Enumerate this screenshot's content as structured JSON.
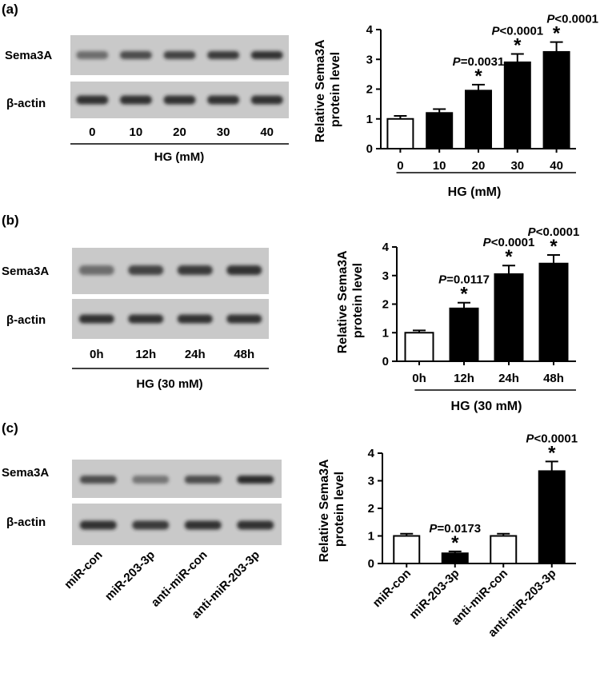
{
  "panels": [
    {
      "id": "a",
      "panel_label": "(a)",
      "blot": {
        "row_labels": [
          "Sema3A",
          "β-actin"
        ],
        "lane_labels": [
          "0",
          "10",
          "20",
          "30",
          "40"
        ],
        "group_label": "HG (mM)",
        "band_intensity": {
          "Sema3A": [
            0.55,
            0.75,
            0.8,
            0.85,
            0.9
          ],
          "β-actin": [
            0.9,
            0.9,
            0.9,
            0.9,
            0.9
          ]
        }
      }
    },
    {
      "id": "b",
      "panel_label": "(b)",
      "blot": {
        "row_labels": [
          "Sema3A",
          "β-actin"
        ],
        "lane_labels": [
          "0h",
          "12h",
          "24h",
          "48h"
        ],
        "group_label": "HG (30 mM)",
        "band_intensity": {
          "Sema3A": [
            0.55,
            0.8,
            0.85,
            0.9
          ],
          "β-actin": [
            0.9,
            0.9,
            0.9,
            0.9
          ]
        }
      }
    },
    {
      "id": "c",
      "panel_label": "(c)",
      "blot": {
        "row_labels": [
          "Sema3A",
          "β-actin"
        ],
        "lane_labels": [
          "miR-con",
          "miR-203-3p",
          "anti-miR-con",
          "anti-miR-203-3p"
        ],
        "group_label": "",
        "band_intensity": {
          "Sema3A": [
            0.75,
            0.5,
            0.75,
            0.95
          ],
          "β-actin": [
            0.9,
            0.85,
            0.9,
            0.9
          ]
        }
      }
    }
  ],
  "chart_data": [
    {
      "type": "bar",
      "title": "",
      "ylabel": "Relative Sema3A protein level",
      "xlabel": "HG (mM)",
      "categories": [
        "0",
        "10",
        "20",
        "30",
        "40"
      ],
      "values": [
        1.0,
        1.2,
        1.95,
        2.9,
        3.25
      ],
      "errors": [
        0.1,
        0.13,
        0.2,
        0.28,
        0.33
      ],
      "fill": [
        "white",
        "black",
        "black",
        "black",
        "black"
      ],
      "ylim": [
        0,
        4
      ],
      "yticks": [
        0,
        1,
        2,
        3,
        4
      ],
      "annotations": [
        {
          "category": "20",
          "p_text": "=0.0031",
          "star": "*"
        },
        {
          "category": "30",
          "p_text": "<0.0001",
          "star": "*"
        },
        {
          "category": "40",
          "p_text": "<0.0001",
          "star": "*"
        }
      ]
    },
    {
      "type": "bar",
      "title": "",
      "ylabel": "Relative Sema3A protein level",
      "xlabel": "HG (30 mM)",
      "categories": [
        "0h",
        "12h",
        "24h",
        "48h"
      ],
      "values": [
        1.0,
        1.85,
        3.05,
        3.42
      ],
      "errors": [
        0.08,
        0.2,
        0.3,
        0.3
      ],
      "fill": [
        "white",
        "black",
        "black",
        "black"
      ],
      "ylim": [
        0,
        4
      ],
      "yticks": [
        0,
        1,
        2,
        3,
        4
      ],
      "annotations": [
        {
          "category": "12h",
          "p_text": "=0.0117",
          "star": "*"
        },
        {
          "category": "24h",
          "p_text": "<0.0001",
          "star": "*"
        },
        {
          "category": "48h",
          "p_text": "<0.0001",
          "star": "*"
        }
      ]
    },
    {
      "type": "bar",
      "title": "",
      "ylabel": "Relative Sema3A protein level",
      "xlabel": "",
      "categories": [
        "miR-con",
        "miR-203-3p",
        "anti-miR-con",
        "anti-miR-203-3p"
      ],
      "values": [
        1.0,
        0.37,
        1.0,
        3.35
      ],
      "errors": [
        0.08,
        0.07,
        0.08,
        0.35
      ],
      "fill": [
        "white",
        "black",
        "white",
        "black"
      ],
      "ylim": [
        0,
        4
      ],
      "yticks": [
        0,
        1,
        2,
        3,
        4
      ],
      "annotations": [
        {
          "category": "miR-203-3p",
          "p_text": "=0.0173",
          "star": "*"
        },
        {
          "category": "anti-miR-203-3p",
          "p_text": "<0.0001",
          "star": "*"
        }
      ]
    }
  ],
  "p_prefix": "P",
  "colors": {
    "bar_black": "#000000",
    "bar_white": "#ffffff",
    "blot_bg": "#c9c9c9",
    "band": "#222222"
  }
}
